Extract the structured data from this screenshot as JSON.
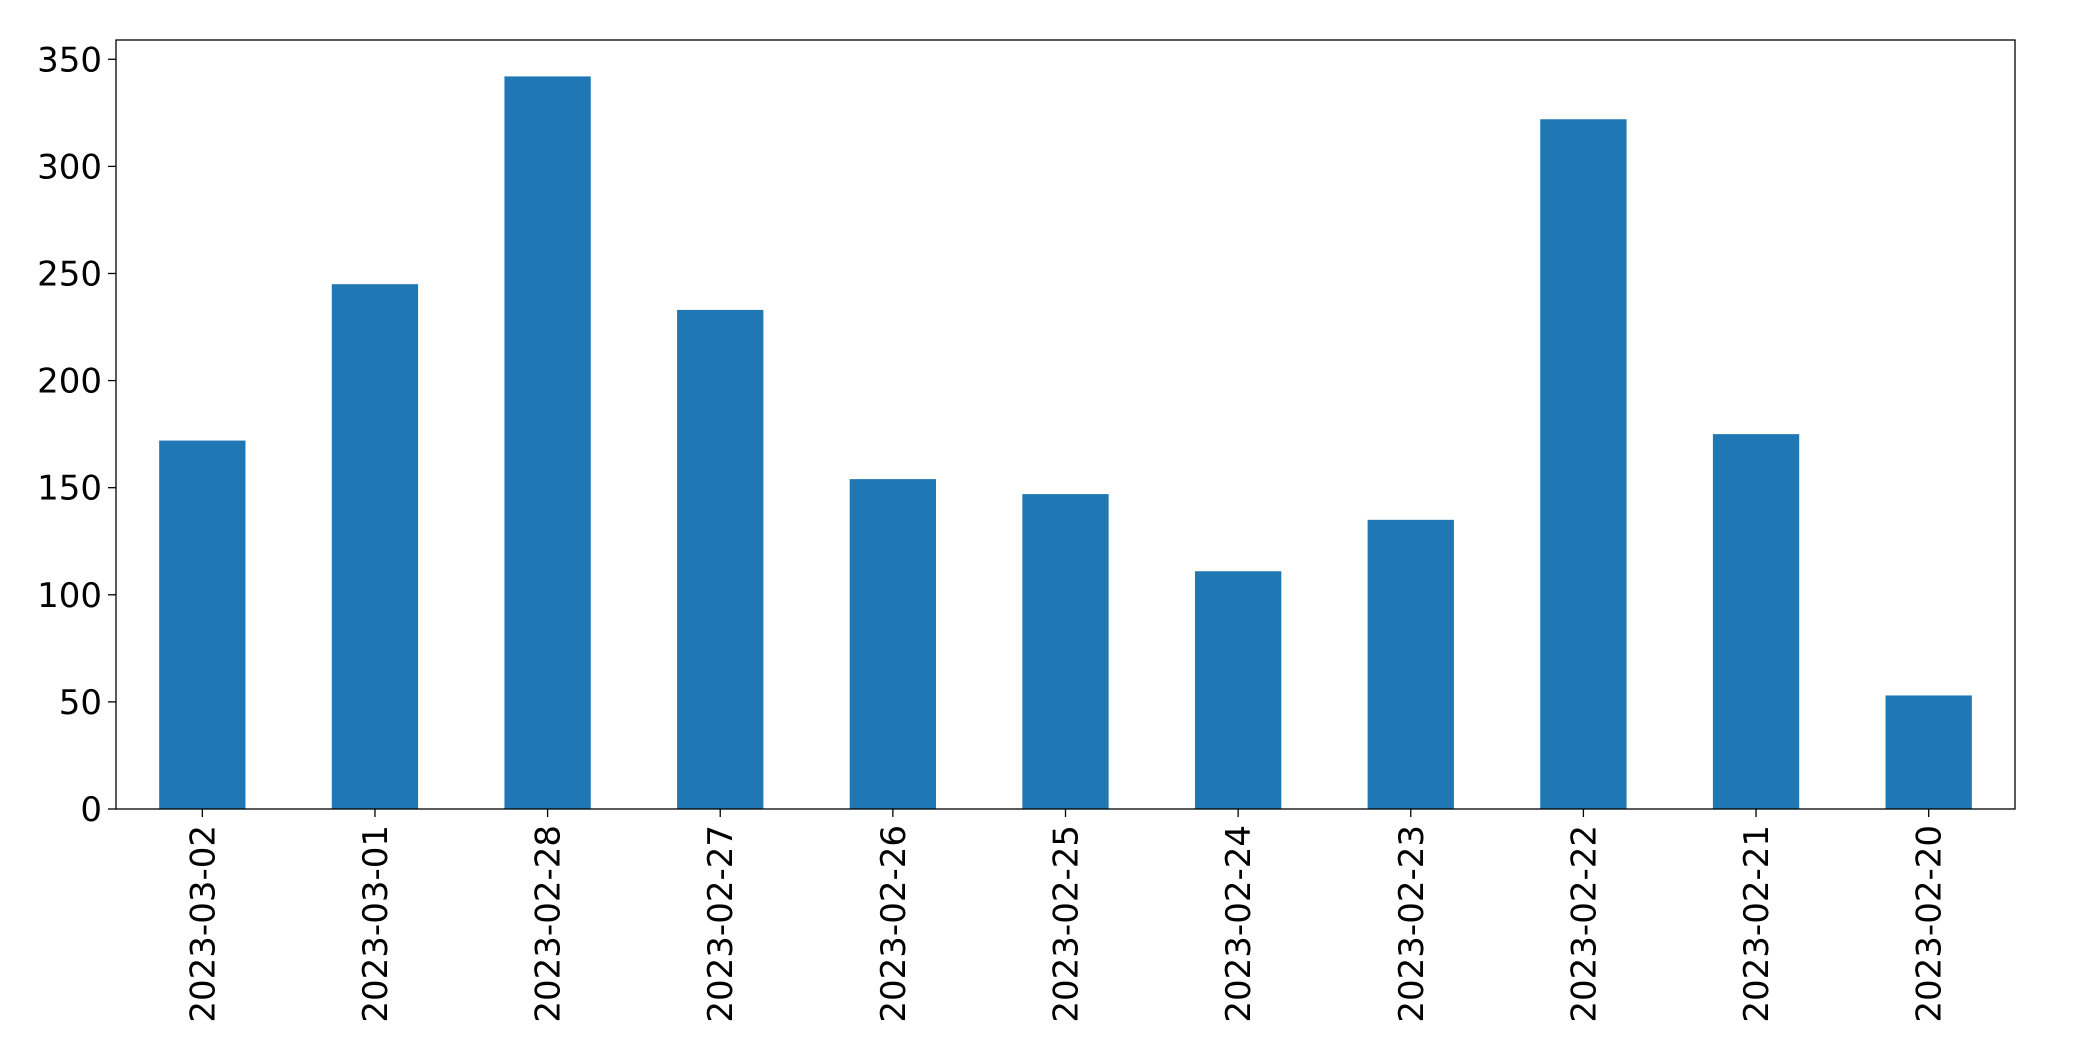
{
  "chart_data": {
    "type": "bar",
    "categories": [
      "2023-03-02",
      "2023-03-01",
      "2023-02-28",
      "2023-02-27",
      "2023-02-26",
      "2023-02-25",
      "2023-02-24",
      "2023-02-23",
      "2023-02-22",
      "2023-02-21",
      "2023-02-20"
    ],
    "values": [
      172,
      245,
      342,
      233,
      154,
      147,
      111,
      135,
      322,
      175,
      53
    ],
    "color": "#1f77b4",
    "ylim": [
      0,
      359
    ],
    "yticks": [
      0,
      50,
      100,
      150,
      200,
      250,
      300,
      350
    ],
    "grid": false
  }
}
